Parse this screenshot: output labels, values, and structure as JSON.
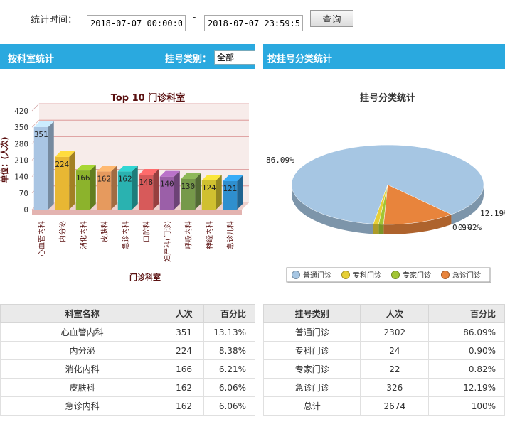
{
  "filter": {
    "label": "统计时间：",
    "start_value": "2018-07-07 00:00:00",
    "dash": "-",
    "end_value": "2018-07-07 23:59:59",
    "query_label": "查询"
  },
  "left_section": {
    "title": "按科室统计",
    "type_label": "挂号类别：",
    "type_value": "全部"
  },
  "right_section": {
    "title": "按挂号分类统计"
  },
  "colors": {
    "header": "#2aa9df",
    "bars": [
      "#a9c5e3",
      "#e8b733",
      "#8cb32c",
      "#e69a5e",
      "#2ab2b0",
      "#d75a5a",
      "#9b5fa8",
      "#76994a",
      "#d0c030",
      "#2f8fce"
    ],
    "pie": [
      "#a6c6e3",
      "#e7cf35",
      "#a2c534",
      "#e8843c"
    ]
  },
  "chart_data": [
    {
      "type": "bar",
      "title": "Top 10 门诊科室",
      "xlabel": "门诊科室",
      "ylabel": "单位：(人次)",
      "ylim": [
        0,
        420
      ],
      "yticks": [
        0,
        70,
        140,
        210,
        280,
        350,
        420
      ],
      "categories": [
        "心血管内科",
        "内分泌",
        "消化内科",
        "皮肤科",
        "急诊内科",
        "口腔科",
        "妇产科(门诊)",
        "呼吸内科",
        "神经内科",
        "急诊儿科"
      ],
      "values": [
        351,
        224,
        166,
        162,
        162,
        148,
        140,
        130,
        124,
        121
      ],
      "grid": true
    },
    {
      "type": "pie",
      "title": "挂号分类统计",
      "labels": [
        "普通门诊",
        "专科门诊",
        "专家门诊",
        "急诊门诊"
      ],
      "values": [
        2302,
        24,
        22,
        326
      ],
      "percent_labels": [
        "86.09%",
        "0.9%",
        "0.82%",
        "12.19%"
      ],
      "legend": "bottom"
    }
  ],
  "dept_table": {
    "headers": [
      "科室名称",
      "人次",
      "百分比"
    ],
    "rows": [
      [
        "心血管内科",
        "351",
        "13.13%"
      ],
      [
        "内分泌",
        "224",
        "8.38%"
      ],
      [
        "消化内科",
        "166",
        "6.21%"
      ],
      [
        "皮肤科",
        "162",
        "6.06%"
      ],
      [
        "急诊内科",
        "162",
        "6.06%"
      ]
    ]
  },
  "type_table": {
    "headers": [
      "挂号类别",
      "人次",
      "百分比"
    ],
    "rows": [
      [
        "普通门诊",
        "2302",
        "86.09%"
      ],
      [
        "专科门诊",
        "24",
        "0.90%"
      ],
      [
        "专家门诊",
        "22",
        "0.82%"
      ],
      [
        "急诊门诊",
        "326",
        "12.19%"
      ],
      [
        "总计",
        "2674",
        "100%"
      ]
    ]
  }
}
